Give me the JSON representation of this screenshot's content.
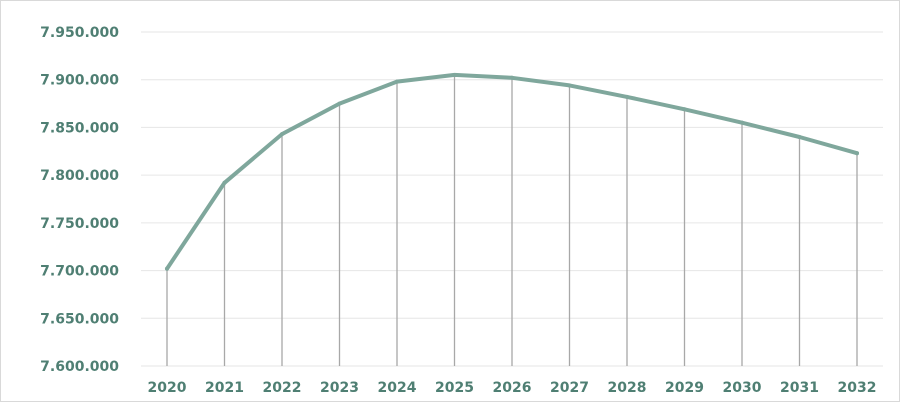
{
  "chart_data": {
    "type": "line",
    "x": [
      "2020",
      "2021",
      "2022",
      "2023",
      "2024",
      "2025",
      "2026",
      "2027",
      "2028",
      "2029",
      "2030",
      "2031",
      "2032"
    ],
    "series": [
      {
        "values": [
          7702000,
          7792000,
          7843000,
          7875000,
          7898000,
          7905000,
          7902000,
          7894000,
          7882000,
          7869000,
          7855000,
          7840000,
          7823000
        ]
      }
    ],
    "ylim": [
      7600000,
      7950000
    ],
    "yticks": [
      7600000,
      7650000,
      7700000,
      7750000,
      7800000,
      7850000,
      7900000,
      7950000
    ],
    "ytick_labels": [
      "7.600.000",
      "7.650.000",
      "7.700.000",
      "7.750.000",
      "7.800.000",
      "7.850.000",
      "7.900.000",
      "7.950.000"
    ],
    "grid": true,
    "drop_lines": true,
    "colors": {
      "line": "#7fa79c",
      "grid": "#e6e6e6",
      "drop": "#a8a8a8",
      "text": "#4f7f73"
    }
  }
}
